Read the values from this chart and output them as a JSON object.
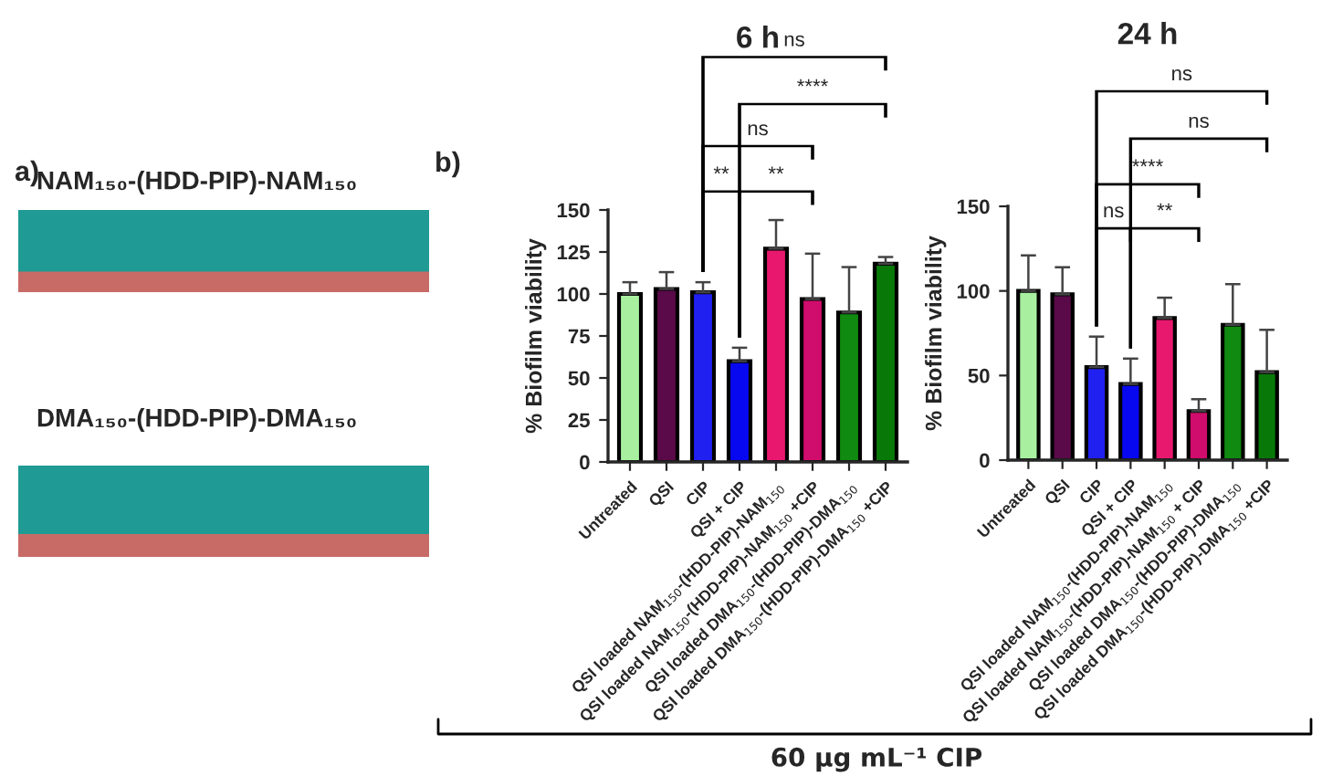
{
  "chart_data": [
    {
      "type": "other",
      "annotations": [
        "a)",
        "NAM₁₅₀-(HDD-PIP)-NAM₁₅₀",
        "DMA₁₅₀-(HDD-PIP)-DMA₁₅₀"
      ]
    },
    {
      "type": "bar",
      "title": "6 h",
      "ylabel": "% Biofilm viability",
      "categories": [
        "Untreated",
        "QSI",
        "CIP",
        "QSI + CIP",
        "QSI loaded NAM$_{150}$-(HDD-PIP)-NAM$_{150}$",
        "QSI loaded NAM$_{150}$-(HDD-PIP)-NAM$_{150}$ +CIP",
        "QSI loaded DMA$_{150}$-(HDD-PIP)-DMA$_{150}$",
        "QSI loaded DMA$_{150}$-(HDD-PIP)-DMA$_{150}$ +CIP"
      ],
      "values": [
        100,
        103,
        101,
        60,
        127,
        97,
        89,
        118
      ],
      "errors": [
        [
          100,
          107
        ],
        [
          103,
          113
        ],
        [
          101,
          107
        ],
        [
          60,
          68
        ],
        [
          127,
          144
        ],
        [
          97,
          124
        ],
        [
          89,
          116
        ],
        [
          118,
          122
        ]
      ],
      "colors": [
        "#a8f0a0",
        "#5a0a48",
        "#2020f0",
        "#0808f0",
        "#e8186e",
        "#d00c6c",
        "#108a10",
        "#087808"
      ],
      "ylim": [
        0,
        150
      ],
      "yticks": [
        0,
        25,
        50,
        75,
        100,
        125,
        150
      ],
      "grid": false,
      "annotations": [
        "ns",
        "****",
        "ns",
        "**",
        "**",
        "b)",
        "60 µg mL⁻¹ CIP"
      ]
    },
    {
      "type": "bar",
      "title": "24 h",
      "ylabel": "% Biofilm viability",
      "categories": [
        "Untreated",
        "QSI",
        "CIP",
        "QSI + CIP",
        "QSI loaded NAM$_{150}$-(HDD-PIP)-NAM$_{150}$",
        "QSI loaded NAM$_{150}$-(HDD-PIP)-NAM$_{150}$ + CIP",
        "QSI loaded DMA$_{150}$-(HDD-PIP)-DMA$_{150}$",
        "QSI loaded DMA$_{150}$-(HDD-PIP)-DMA$_{150}$ +CIP"
      ],
      "values": [
        100,
        98,
        55,
        45,
        84,
        29,
        80,
        52
      ],
      "errors": [
        [
          100,
          121
        ],
        [
          98,
          114
        ],
        [
          55,
          73
        ],
        [
          45,
          60
        ],
        [
          84,
          96
        ],
        [
          29,
          36
        ],
        [
          80,
          104
        ],
        [
          52,
          77
        ]
      ],
      "colors": [
        "#a8f0a0",
        "#5a0a48",
        "#2020f0",
        "#0808f0",
        "#e8186e",
        "#d00c6c",
        "#108a10",
        "#087808"
      ],
      "ylim": [
        0,
        150
      ],
      "yticks": [
        0,
        50,
        100,
        150
      ],
      "grid": false,
      "annotations": [
        "ns",
        "ns",
        "****",
        "ns",
        "**"
      ]
    }
  ]
}
